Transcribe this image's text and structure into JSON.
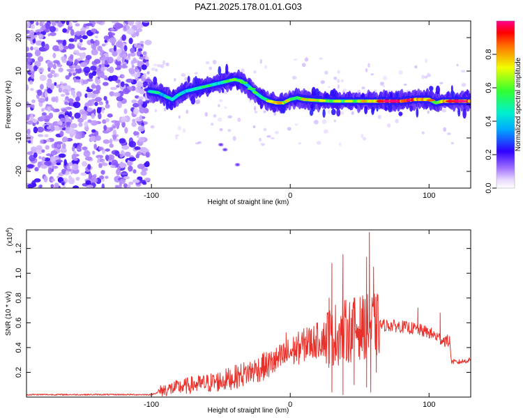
{
  "title": "PAZ1.2025.178.01.01.G03",
  "colors": {
    "snr_line": "#e8312b",
    "low_amplitude": "#c9b3ff",
    "mid_amplitude": "#5a1fd6"
  },
  "chart_data": [
    {
      "type": "heatmap",
      "title": "PAZ1.2025.178.01.01.G03",
      "xlabel": "Height of straight line (km)",
      "ylabel": "Frequency (Hz)",
      "xlim": [
        -190,
        130
      ],
      "ylim": [
        -25,
        25
      ],
      "x_ticks": [
        -100,
        0,
        100
      ],
      "x_tick_labels": [
        "-100",
        "0",
        "100"
      ],
      "y_ticks": [
        -20,
        -10,
        0,
        10,
        20
      ],
      "y_tick_labels": [
        "-20",
        "-10",
        "0",
        "10",
        "20"
      ],
      "colorbar": {
        "label": "Normalized spectral amplitude",
        "ticks": [
          0.0,
          0.2,
          0.4,
          0.6,
          0.8
        ],
        "tick_labels": [
          "0.0",
          "0.2",
          "0.4",
          "0.6",
          "0.8"
        ],
        "range": [
          0,
          1
        ]
      },
      "noise_region_x": [
        -190,
        -102
      ],
      "ridge": {
        "x": [
          -102,
          -95,
          -90,
          -85,
          -80,
          -75,
          -70,
          -65,
          -60,
          -55,
          -50,
          -45,
          -40,
          -35,
          -30,
          -25,
          -20,
          -15,
          -10,
          -5,
          0,
          5,
          10,
          20,
          30,
          40,
          50,
          60,
          70,
          80,
          90,
          100,
          105,
          110,
          120,
          130
        ],
        "y": [
          4,
          3.5,
          2.5,
          1.5,
          3,
          4,
          4.5,
          5,
          5.5,
          6,
          6.5,
          7,
          7.5,
          7,
          5.5,
          3.5,
          2,
          1,
          0.5,
          0.5,
          1.5,
          2,
          1.5,
          1.2,
          1,
          1,
          1,
          1,
          1,
          1,
          1.5,
          1.5,
          0.5,
          1,
          1,
          1
        ],
        "amplitude": [
          0.35,
          0.45,
          0.4,
          0.45,
          0.4,
          0.45,
          0.5,
          0.5,
          0.45,
          0.5,
          0.45,
          0.5,
          0.55,
          0.5,
          0.45,
          0.5,
          0.55,
          0.6,
          0.75,
          0.7,
          0.65,
          0.6,
          0.7,
          0.65,
          0.6,
          0.6,
          0.7,
          0.75,
          0.95,
          0.95,
          0.9,
          0.85,
          0.5,
          0.8,
          0.9,
          0.9
        ]
      },
      "isolated_features": [
        {
          "x": -50,
          "y": -12
        },
        {
          "x": -47,
          "y": -13.5
        },
        {
          "x": -38,
          "y": -18
        }
      ]
    },
    {
      "type": "line",
      "xlabel": "Height of straight line (km)",
      "ylabel": "SNR (10 * v/v)",
      "scale_label_base": "(x10",
      "scale_label_exp": "4",
      "scale_label_close": ")",
      "xlim": [
        -190,
        130
      ],
      "ylim": [
        0,
        1.35
      ],
      "x_ticks": [
        -100,
        0,
        100
      ],
      "x_tick_labels": [
        "-100",
        "0",
        "100"
      ],
      "y_ticks": [
        0.2,
        0.4,
        0.6,
        0.8,
        1.0,
        1.2
      ],
      "y_tick_labels": [
        "0.2",
        "0.4",
        "0.6",
        "0.8",
        "1.0",
        "1.2"
      ],
      "series": [
        {
          "x": [
            -190,
            -170,
            -150,
            -130,
            -110,
            -100,
            -95,
            -90,
            -80,
            -70,
            -60,
            -50,
            -40,
            -30,
            -20,
            -10,
            0,
            10,
            20,
            30,
            40,
            50,
            60,
            70,
            80,
            90,
            100,
            110,
            115,
            116,
            120,
            130
          ],
          "y": [
            0.02,
            0.02,
            0.02,
            0.02,
            0.02,
            0.02,
            0.04,
            0.06,
            0.08,
            0.1,
            0.11,
            0.13,
            0.16,
            0.2,
            0.24,
            0.29,
            0.36,
            0.42,
            0.46,
            0.5,
            0.53,
            0.56,
            0.58,
            0.58,
            0.57,
            0.55,
            0.52,
            0.46,
            0.45,
            0.29,
            0.28,
            0.3
          ],
          "peaks": [
            {
              "x": -20,
              "y": 0.35
            },
            {
              "x": -12,
              "y": 0.36
            },
            {
              "x": -3,
              "y": 0.52
            },
            {
              "x": 12,
              "y": 0.56
            },
            {
              "x": 28,
              "y": 0.8
            },
            {
              "x": 30,
              "y": 1.08
            },
            {
              "x": 38,
              "y": 1.15
            },
            {
              "x": 46,
              "y": 0.8
            },
            {
              "x": 55,
              "y": 1.13
            },
            {
              "x": 57,
              "y": 1.33
            },
            {
              "x": 60,
              "y": 1.05
            },
            {
              "x": 92,
              "y": 0.72
            },
            {
              "x": 108,
              "y": 0.68
            }
          ],
          "dips": [
            {
              "x": 30,
              "y": 0.04
            },
            {
              "x": 38,
              "y": 0.02
            },
            {
              "x": 46,
              "y": 0.1
            },
            {
              "x": 55,
              "y": 0.08
            },
            {
              "x": 58,
              "y": 0.04
            },
            {
              "x": 62,
              "y": 0.2
            }
          ]
        }
      ]
    }
  ]
}
